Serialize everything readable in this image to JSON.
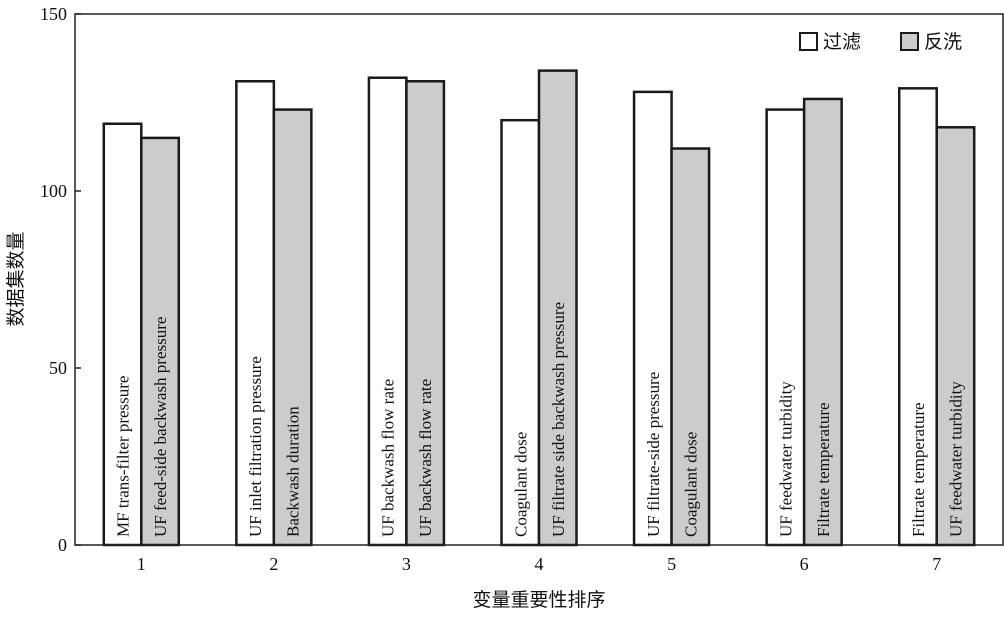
{
  "chart_data": {
    "type": "bar",
    "title": "",
    "xlabel": "变量重要性排序",
    "ylabel": "数据集数量",
    "ylim": [
      0,
      150
    ],
    "yticks": [
      0,
      50,
      100,
      150
    ],
    "categories": [
      "1",
      "2",
      "3",
      "4",
      "5",
      "6",
      "7"
    ],
    "legend_position": "top-right",
    "grid": false,
    "series": [
      {
        "name": "过滤",
        "color": "#ffffff",
        "values": [
          119,
          131,
          132,
          120,
          128,
          123,
          129
        ],
        "labels": [
          "MF trans-filter pressure",
          "UF inlet filtration pressure",
          "UF backwash flow rate",
          "Coagulant dose",
          "UF filtrate-side pressure",
          "UF feedwater turbidity",
          "Filtrate temperature"
        ]
      },
      {
        "name": "反洗",
        "color": "#cccccc",
        "values": [
          115,
          123,
          131,
          134,
          112,
          126,
          118
        ],
        "labels": [
          "UF feed-side backwash pressure",
          "Backwash duration",
          "UF backwash flow rate",
          "UF filtrate side backwash pressure",
          "Coagulant dose",
          "Filtrate temperature",
          "UF feedwater turbidity"
        ]
      }
    ]
  }
}
